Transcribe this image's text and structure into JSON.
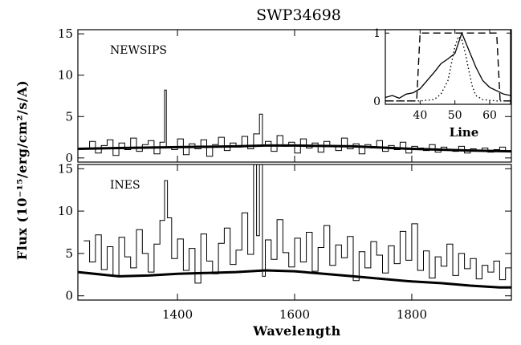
{
  "title": "SWP34698",
  "chart_data": [
    {
      "type": "line",
      "panel": "top",
      "annotation": "NEWSIPS",
      "xlim": [
        1230,
        1970
      ],
      "ylim": [
        -0.5,
        15.5
      ],
      "yticks": [
        "0",
        "5",
        "10",
        "15"
      ],
      "series": [
        {
          "style": "histogram-thin",
          "x": [
            1240,
            1250,
            1260,
            1270,
            1280,
            1290,
            1300,
            1310,
            1320,
            1330,
            1340,
            1350,
            1360,
            1370,
            1378,
            1381,
            1390,
            1400,
            1410,
            1420,
            1430,
            1440,
            1450,
            1460,
            1470,
            1480,
            1490,
            1500,
            1510,
            1520,
            1530,
            1540,
            1545,
            1550,
            1560,
            1570,
            1580,
            1590,
            1600,
            1610,
            1620,
            1630,
            1640,
            1650,
            1660,
            1670,
            1680,
            1690,
            1700,
            1710,
            1720,
            1730,
            1740,
            1750,
            1760,
            1770,
            1780,
            1790,
            1800,
            1810,
            1820,
            1830,
            1840,
            1850,
            1860,
            1870,
            1880,
            1890,
            1900,
            1910,
            1920,
            1930,
            1940,
            1950,
            1960,
            1970
          ],
          "y": [
            1.2,
            2.0,
            0.6,
            1.5,
            2.2,
            0.3,
            1.8,
            1.0,
            2.4,
            0.8,
            1.6,
            2.1,
            0.5,
            1.9,
            8.2,
            1.3,
            1.0,
            2.3,
            0.4,
            1.7,
            1.1,
            2.2,
            0.2,
            1.6,
            2.5,
            0.9,
            1.8,
            1.3,
            2.6,
            1.1,
            2.9,
            5.3,
            1.5,
            2.0,
            0.8,
            2.7,
            1.4,
            1.9,
            0.6,
            2.3,
            1.2,
            1.8,
            0.7,
            2.0,
            1.5,
            0.9,
            2.4,
            1.1,
            1.7,
            0.5,
            1.6,
            1.2,
            2.1,
            0.8,
            1.5,
            1.0,
            1.9,
            0.6,
            1.4,
            1.2,
            0.9,
            1.6,
            0.7,
            1.3,
            1.0,
            0.8,
            1.4,
            0.6,
            1.1,
            0.9,
            1.2,
            0.7,
            1.0,
            1.3,
            0.8,
            1.0
          ]
        },
        {
          "style": "thick",
          "x": [
            1230,
            1300,
            1400,
            1500,
            1550,
            1600,
            1700,
            1800,
            1900,
            1970
          ],
          "y": [
            1.1,
            1.2,
            1.3,
            1.4,
            1.5,
            1.5,
            1.4,
            1.1,
            0.9,
            0.8
          ]
        }
      ]
    },
    {
      "type": "line",
      "panel": "bottom",
      "annotation": "INES",
      "xlim": [
        1230,
        1970
      ],
      "ylim": [
        -0.5,
        15.5
      ],
      "xticks": [
        "1400",
        "1600",
        "1800"
      ],
      "yticks": [
        "0",
        "5",
        "10",
        "15"
      ],
      "series": [
        {
          "style": "histogram-thin",
          "x": [
            1240,
            1250,
            1260,
            1270,
            1280,
            1290,
            1300,
            1310,
            1320,
            1330,
            1340,
            1350,
            1360,
            1370,
            1378,
            1383,
            1390,
            1400,
            1410,
            1420,
            1430,
            1440,
            1450,
            1460,
            1470,
            1480,
            1490,
            1500,
            1510,
            1520,
            1530,
            1535,
            1540,
            1545,
            1550,
            1560,
            1570,
            1580,
            1590,
            1600,
            1610,
            1620,
            1630,
            1640,
            1650,
            1660,
            1670,
            1680,
            1690,
            1700,
            1710,
            1720,
            1730,
            1740,
            1750,
            1760,
            1770,
            1780,
            1790,
            1800,
            1810,
            1820,
            1830,
            1840,
            1850,
            1860,
            1870,
            1880,
            1890,
            1900,
            1910,
            1920,
            1930,
            1940,
            1950,
            1960,
            1970
          ],
          "y": [
            6.5,
            4.0,
            7.2,
            3.1,
            5.8,
            2.4,
            6.9,
            4.6,
            3.3,
            7.8,
            5.0,
            2.8,
            6.1,
            8.9,
            13.6,
            9.2,
            4.4,
            6.7,
            3.0,
            5.6,
            1.5,
            7.3,
            4.1,
            2.6,
            6.2,
            8.0,
            3.7,
            5.4,
            9.8,
            4.9,
            15.5,
            7.1,
            15.5,
            2.3,
            6.6,
            4.3,
            9.0,
            5.1,
            3.4,
            6.8,
            4.0,
            7.5,
            2.9,
            5.7,
            8.3,
            3.6,
            6.0,
            4.5,
            7.0,
            1.8,
            5.2,
            3.3,
            6.4,
            4.8,
            2.7,
            5.9,
            3.8,
            7.6,
            4.2,
            8.5,
            3.0,
            5.3,
            2.1,
            4.6,
            3.5,
            6.1,
            2.4,
            5.0,
            3.2,
            4.4,
            2.0,
            3.6,
            2.8,
            4.1,
            1.9,
            3.3,
            4.0
          ]
        },
        {
          "style": "thick",
          "x": [
            1230,
            1300,
            1350,
            1400,
            1450,
            1500,
            1550,
            1600,
            1650,
            1700,
            1750,
            1800,
            1850,
            1900,
            1950,
            1970
          ],
          "y": [
            2.8,
            2.3,
            2.4,
            2.6,
            2.7,
            2.8,
            3.0,
            2.9,
            2.6,
            2.3,
            2.0,
            1.7,
            1.5,
            1.2,
            1.0,
            1.0
          ]
        }
      ]
    },
    {
      "type": "line",
      "panel": "inset",
      "xlabel": "Line",
      "xlim": [
        30,
        66
      ],
      "ylim": [
        -0.05,
        1.05
      ],
      "xticks": [
        "40",
        "50",
        "60"
      ],
      "yticks": [
        "0",
        "1"
      ],
      "series": [
        {
          "style": "dashed",
          "x": [
            30,
            39,
            40,
            41,
            61,
            62,
            63,
            66
          ],
          "y": [
            0,
            0,
            1,
            1,
            1,
            1,
            0,
            0
          ]
        },
        {
          "style": "solid",
          "x": [
            30,
            32,
            34,
            36,
            38,
            40,
            42,
            44,
            46,
            48,
            50,
            52,
            54,
            56,
            58,
            60,
            62,
            64,
            66
          ],
          "y": [
            0.05,
            0.08,
            0.04,
            0.1,
            0.12,
            0.18,
            0.3,
            0.42,
            0.55,
            0.62,
            0.7,
            1.0,
            0.75,
            0.5,
            0.3,
            0.2,
            0.15,
            0.1,
            0.08
          ]
        },
        {
          "style": "dotted",
          "x": [
            30,
            40,
            44,
            46,
            48,
            49,
            50,
            51,
            52,
            53,
            54,
            55,
            56,
            58,
            62,
            66
          ],
          "y": [
            0,
            0,
            0.02,
            0.1,
            0.3,
            0.55,
            0.8,
            0.95,
            0.9,
            0.7,
            0.45,
            0.22,
            0.08,
            0.02,
            0,
            0
          ]
        }
      ]
    }
  ],
  "xlabel": "Wavelength",
  "ylabel": "Flux (10⁻¹⁵/erg/cm²/s/A)"
}
